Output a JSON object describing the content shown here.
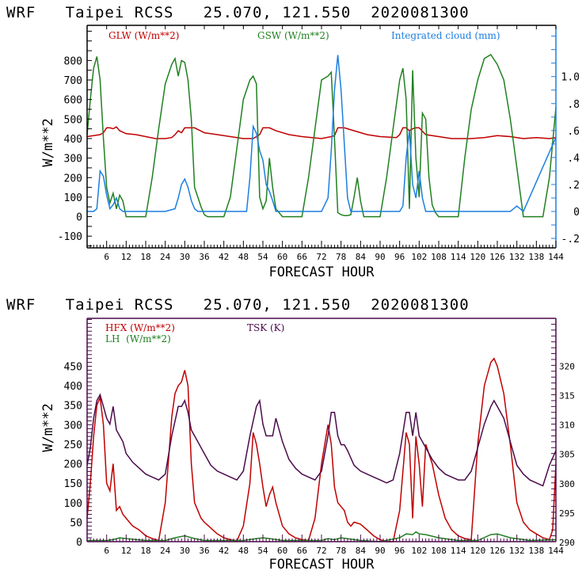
{
  "chart_data": [
    {
      "type": "line",
      "title": "WRF   Taipei RCSS   25.070, 121.550  2020081300",
      "xlabel": "FORECAST HOUR",
      "ylabel": "W/m**2",
      "xlim": [
        0,
        144
      ],
      "ylim": [
        -160,
        980
      ],
      "y2lim": [
        -0.6,
        0.6
      ],
      "grid": false,
      "legend_placement": "top",
      "x_ticks": [
        6,
        12,
        18,
        24,
        30,
        36,
        42,
        48,
        54,
        60,
        66,
        72,
        78,
        84,
        90,
        96,
        102,
        108,
        114,
        120,
        126,
        132,
        138,
        144
      ],
      "x_tick_labels": [
        "6",
        "12",
        "18",
        "24",
        "30",
        "36",
        "42",
        "48",
        "54",
        "60",
        "66",
        "72",
        "78",
        "84",
        "90",
        "96",
        "102",
        "108",
        "114",
        "120",
        "126",
        "132",
        "138",
        "144"
      ],
      "y_ticks": [
        -100,
        0,
        100,
        200,
        300,
        400,
        500,
        600,
        700,
        800
      ],
      "y_tick_labels": [
        "-100",
        "0",
        "100",
        "200",
        "300",
        "400",
        "500",
        "600",
        "700",
        "800"
      ],
      "y2_ticks": [
        -0.2,
        0,
        0.2,
        0.4,
        0.6,
        0.8,
        1.0
      ],
      "y2_tick_labels": [
        "-.2",
        "0",
        ".2",
        ".4",
        ".6",
        ".8",
        "1.0"
      ],
      "y2_range": [
        -0.27,
        1.38
      ],
      "series": [
        {
          "name": "GLW (W/m**2)",
          "color": "#c00000",
          "axis": "left",
          "x": [
            0,
            2,
            4,
            5,
            6,
            7,
            8,
            9,
            10,
            12,
            15,
            18,
            21,
            24,
            26,
            27,
            28,
            29,
            30,
            31,
            33,
            36,
            40,
            44,
            48,
            51,
            52,
            53,
            54,
            56,
            58,
            62,
            66,
            72,
            75,
            76,
            77,
            78,
            79,
            80,
            82,
            86,
            90,
            95,
            96,
            97,
            98,
            99,
            100,
            101,
            102,
            104,
            108,
            112,
            114,
            118,
            122,
            126,
            130,
            134,
            138,
            142,
            144
          ],
          "y": [
            410,
            415,
            420,
            430,
            455,
            455,
            450,
            460,
            440,
            425,
            420,
            410,
            400,
            400,
            405,
            420,
            440,
            430,
            455,
            455,
            455,
            430,
            420,
            410,
            400,
            400,
            410,
            420,
            455,
            455,
            440,
            420,
            410,
            400,
            410,
            415,
            455,
            455,
            455,
            450,
            440,
            420,
            410,
            405,
            420,
            455,
            455,
            440,
            450,
            455,
            455,
            420,
            410,
            400,
            400,
            400,
            405,
            415,
            410,
            400,
            405,
            400,
            405
          ]
        },
        {
          "name": "GSW (W/m**2)",
          "color": "#208020",
          "axis": "left",
          "x": [
            0,
            1,
            2,
            3,
            4,
            5,
            6,
            7,
            8,
            9,
            10,
            11,
            12,
            13,
            18,
            20,
            22,
            24,
            26,
            27,
            28,
            29,
            30,
            31,
            32,
            33,
            34,
            35,
            36,
            37,
            42,
            44,
            46,
            48,
            50,
            51,
            52,
            53,
            54,
            55,
            56,
            57,
            58,
            60,
            66,
            68,
            70,
            72,
            74,
            75,
            76,
            77,
            78,
            79,
            80,
            81,
            82,
            83,
            84,
            85,
            90,
            92,
            94,
            96,
            97,
            98,
            99,
            100,
            101,
            102,
            103,
            104,
            105,
            106,
            107,
            108,
            114,
            116,
            118,
            120,
            122,
            124,
            126,
            128,
            130,
            132,
            134,
            138,
            140,
            142,
            144
          ],
          "y": [
            420,
            600,
            760,
            820,
            700,
            400,
            150,
            70,
            120,
            40,
            110,
            80,
            0,
            0,
            0,
            200,
            450,
            680,
            780,
            810,
            720,
            800,
            790,
            700,
            500,
            150,
            100,
            50,
            10,
            0,
            0,
            100,
            350,
            600,
            700,
            720,
            680,
            100,
            40,
            80,
            300,
            150,
            40,
            0,
            0,
            200,
            450,
            700,
            720,
            740,
            400,
            20,
            10,
            5,
            5,
            10,
            100,
            200,
            80,
            0,
            0,
            200,
            450,
            700,
            760,
            600,
            40,
            750,
            300,
            100,
            530,
            500,
            200,
            60,
            20,
            0,
            0,
            300,
            550,
            700,
            810,
            830,
            780,
            700,
            500,
            250,
            0,
            0,
            0,
            200,
            560
          ]
        },
        {
          "name": "Integrated cloud (mm)",
          "color": "#1c7fe0",
          "axis": "right",
          "x": [
            0,
            2,
            3,
            4,
            5,
            6,
            7,
            8,
            9,
            10,
            11,
            12,
            24,
            27,
            28,
            29,
            30,
            31,
            32,
            33,
            34,
            48,
            49,
            50,
            51,
            52,
            53,
            54,
            55,
            56,
            57,
            58,
            72,
            74,
            75,
            76,
            77,
            78,
            79,
            80,
            81,
            96,
            97,
            98,
            99,
            100,
            101,
            102,
            103,
            104,
            130,
            131,
            132,
            133,
            134,
            144
          ],
          "y": [
            0,
            0,
            0.02,
            0.3,
            0.26,
            0.12,
            0.02,
            0.05,
            0.1,
            0.02,
            0,
            0,
            0,
            0.02,
            0.1,
            0.2,
            0.24,
            0.18,
            0.08,
            0.02,
            0,
            0,
            0,
            0.25,
            0.63,
            0.58,
            0.45,
            0.38,
            0.2,
            0.15,
            0.08,
            0,
            0,
            0.1,
            0.45,
            0.9,
            1.16,
            0.9,
            0.5,
            0.1,
            0,
            0,
            0.04,
            0.4,
            0.6,
            0.2,
            0.1,
            0.3,
            0.1,
            0,
            0,
            0.02,
            0.04,
            0.02,
            0,
            0.55
          ]
        }
      ]
    },
    {
      "type": "line",
      "title": "WRF   Taipei RCSS   25.070, 121.550  2020081300",
      "xlabel": "FORECAST HOUR",
      "ylabel": "W/m**2",
      "xlim": [
        0,
        144
      ],
      "ylim": [
        0,
        573
      ],
      "grid": false,
      "legend_placement": "top-left",
      "x_ticks": [
        6,
        12,
        18,
        24,
        30,
        36,
        42,
        48,
        54,
        60,
        66,
        72,
        78,
        84,
        90,
        96,
        102,
        108,
        114,
        120,
        126,
        132,
        138,
        144
      ],
      "x_tick_labels": [
        "6",
        "12",
        "18",
        "24",
        "30",
        "36",
        "42",
        "48",
        "54",
        "60",
        "66",
        "72",
        "78",
        "84",
        "90",
        "96",
        "102",
        "108",
        "114",
        "120",
        "126",
        "132",
        "138",
        "144"
      ],
      "y_ticks": [
        0,
        50,
        100,
        150,
        200,
        250,
        300,
        350,
        400,
        450
      ],
      "y_tick_labels": [
        "0",
        "50",
        "100",
        "150",
        "200",
        "250",
        "300",
        "350",
        "400",
        "450"
      ],
      "y2_ticks": [
        290,
        295,
        300,
        305,
        310,
        315,
        320
      ],
      "y2_tick_labels": [
        "290",
        "295",
        "300",
        "305",
        "310",
        "315",
        "320"
      ],
      "y2_range": [
        290,
        328
      ],
      "series": [
        {
          "name": "HFX (W/m**2)",
          "color": "#c00000",
          "axis": "left",
          "x": [
            0,
            1,
            2,
            3,
            4,
            5,
            6,
            7,
            8,
            9,
            10,
            11,
            12,
            14,
            16,
            18,
            20,
            22,
            24,
            26,
            27,
            28,
            29,
            30,
            31,
            32,
            33,
            34,
            35,
            36,
            38,
            40,
            42,
            44,
            46,
            48,
            50,
            51,
            52,
            53,
            54,
            55,
            56,
            57,
            58,
            60,
            62,
            64,
            66,
            68,
            70,
            72,
            74,
            75,
            76,
            77,
            78,
            79,
            80,
            81,
            82,
            84,
            86,
            88,
            90,
            92,
            94,
            96,
            98,
            99,
            100,
            101,
            102,
            103,
            104,
            106,
            108,
            110,
            112,
            114,
            116,
            118,
            120,
            122,
            124,
            125,
            126,
            128,
            130,
            132,
            134,
            136,
            138,
            140,
            142,
            143,
            144
          ],
          "y": [
            60,
            150,
            270,
            350,
            370,
            300,
            150,
            130,
            200,
            80,
            90,
            70,
            60,
            40,
            30,
            15,
            8,
            3,
            100,
            320,
            380,
            400,
            410,
            440,
            400,
            200,
            100,
            80,
            60,
            50,
            35,
            20,
            10,
            5,
            2,
            40,
            150,
            280,
            250,
            200,
            140,
            90,
            120,
            140,
            100,
            40,
            20,
            10,
            5,
            3,
            60,
            200,
            300,
            250,
            140,
            100,
            90,
            80,
            50,
            40,
            50,
            45,
            30,
            15,
            5,
            0,
            0,
            80,
            280,
            250,
            60,
            270,
            200,
            90,
            250,
            200,
            120,
            60,
            30,
            15,
            8,
            5,
            250,
            400,
            460,
            470,
            450,
            380,
            250,
            100,
            50,
            30,
            20,
            10,
            5,
            30,
            200
          ]
        },
        {
          "name": "LH (W/m**2)",
          "color": "#208020",
          "axis": "left",
          "x": [
            0,
            6,
            8,
            10,
            12,
            18,
            24,
            27,
            30,
            33,
            36,
            48,
            52,
            54,
            56,
            60,
            72,
            74,
            76,
            78,
            84,
            90,
            96,
            98,
            100,
            101,
            102,
            104,
            108,
            114,
            120,
            124,
            126,
            130,
            136,
            144
          ],
          "y": [
            3,
            3,
            5,
            10,
            8,
            3,
            3,
            10,
            15,
            8,
            3,
            3,
            8,
            10,
            8,
            3,
            3,
            8,
            5,
            10,
            3,
            0,
            10,
            20,
            18,
            25,
            20,
            18,
            10,
            3,
            3,
            18,
            20,
            10,
            3,
            5
          ]
        },
        {
          "name": "TSK (K)",
          "color": "#4b0a4b",
          "axis": "right",
          "x": [
            0,
            1,
            2,
            3,
            4,
            5,
            6,
            7,
            8,
            9,
            10,
            11,
            12,
            14,
            16,
            18,
            20,
            22,
            24,
            26,
            28,
            29,
            30,
            31,
            32,
            33,
            34,
            35,
            36,
            38,
            40,
            42,
            44,
            46,
            48,
            50,
            52,
            53,
            54,
            55,
            56,
            57,
            58,
            60,
            62,
            64,
            66,
            68,
            70,
            72,
            74,
            75,
            76,
            77,
            78,
            79,
            80,
            82,
            84,
            86,
            88,
            90,
            92,
            94,
            96,
            98,
            99,
            100,
            101,
            102,
            103,
            104,
            106,
            108,
            110,
            112,
            114,
            116,
            118,
            120,
            122,
            124,
            125,
            126,
            128,
            130,
            132,
            134,
            136,
            138,
            140,
            142,
            144
          ],
          "y": [
            303,
            306,
            311,
            314,
            315,
            313,
            311,
            310,
            313,
            309,
            308,
            307,
            305,
            303.5,
            302.5,
            301.5,
            301,
            300.5,
            301.5,
            308,
            313,
            313,
            314,
            312,
            309,
            308,
            307,
            306,
            305,
            303,
            302,
            301.5,
            301,
            300.5,
            302,
            308,
            313,
            314,
            310,
            308,
            308,
            308,
            311,
            307,
            304,
            302.5,
            301.5,
            301,
            300.5,
            302,
            308,
            312,
            312,
            308,
            306.5,
            306.5,
            305.5,
            303,
            302,
            301.5,
            301,
            300.5,
            300,
            300.5,
            305,
            312,
            312,
            308,
            312,
            308,
            307,
            306,
            304,
            302.5,
            301.5,
            301,
            300.5,
            300.5,
            302,
            306,
            310,
            313,
            314,
            313,
            311,
            307,
            303,
            301.5,
            300.5,
            300,
            299.5,
            303,
            305.5
          ]
        }
      ]
    }
  ],
  "charts": [
    {
      "title": "WRF   Taipei RCSS   25.070, 121.550  2020081300",
      "ylabel": "W/m**2",
      "xlabel": "FORECAST HOUR",
      "legend": [
        {
          "label": "GLW (W/m**2)",
          "color": "#c00000"
        },
        {
          "label": "GSW (W/m**2)",
          "color": "#208020"
        },
        {
          "label": "Integrated cloud (mm)",
          "color": "#1c7fe0"
        }
      ]
    },
    {
      "title": "WRF   Taipei RCSS   25.070, 121.550  2020081300",
      "ylabel": "W/m**2",
      "xlabel": "FORECAST HOUR",
      "legend": [
        {
          "label": "HFX (W/m**2)",
          "color": "#c00000"
        },
        {
          "label": "LH  (W/m**2)",
          "color": "#208020"
        },
        {
          "label": "TSK (K)",
          "color": "#4b0a4b"
        }
      ]
    }
  ],
  "colors": {
    "frame_top": "#000000",
    "right_axis_top": "#1c7fe0",
    "frame_bottom": "#4b0a4b"
  }
}
